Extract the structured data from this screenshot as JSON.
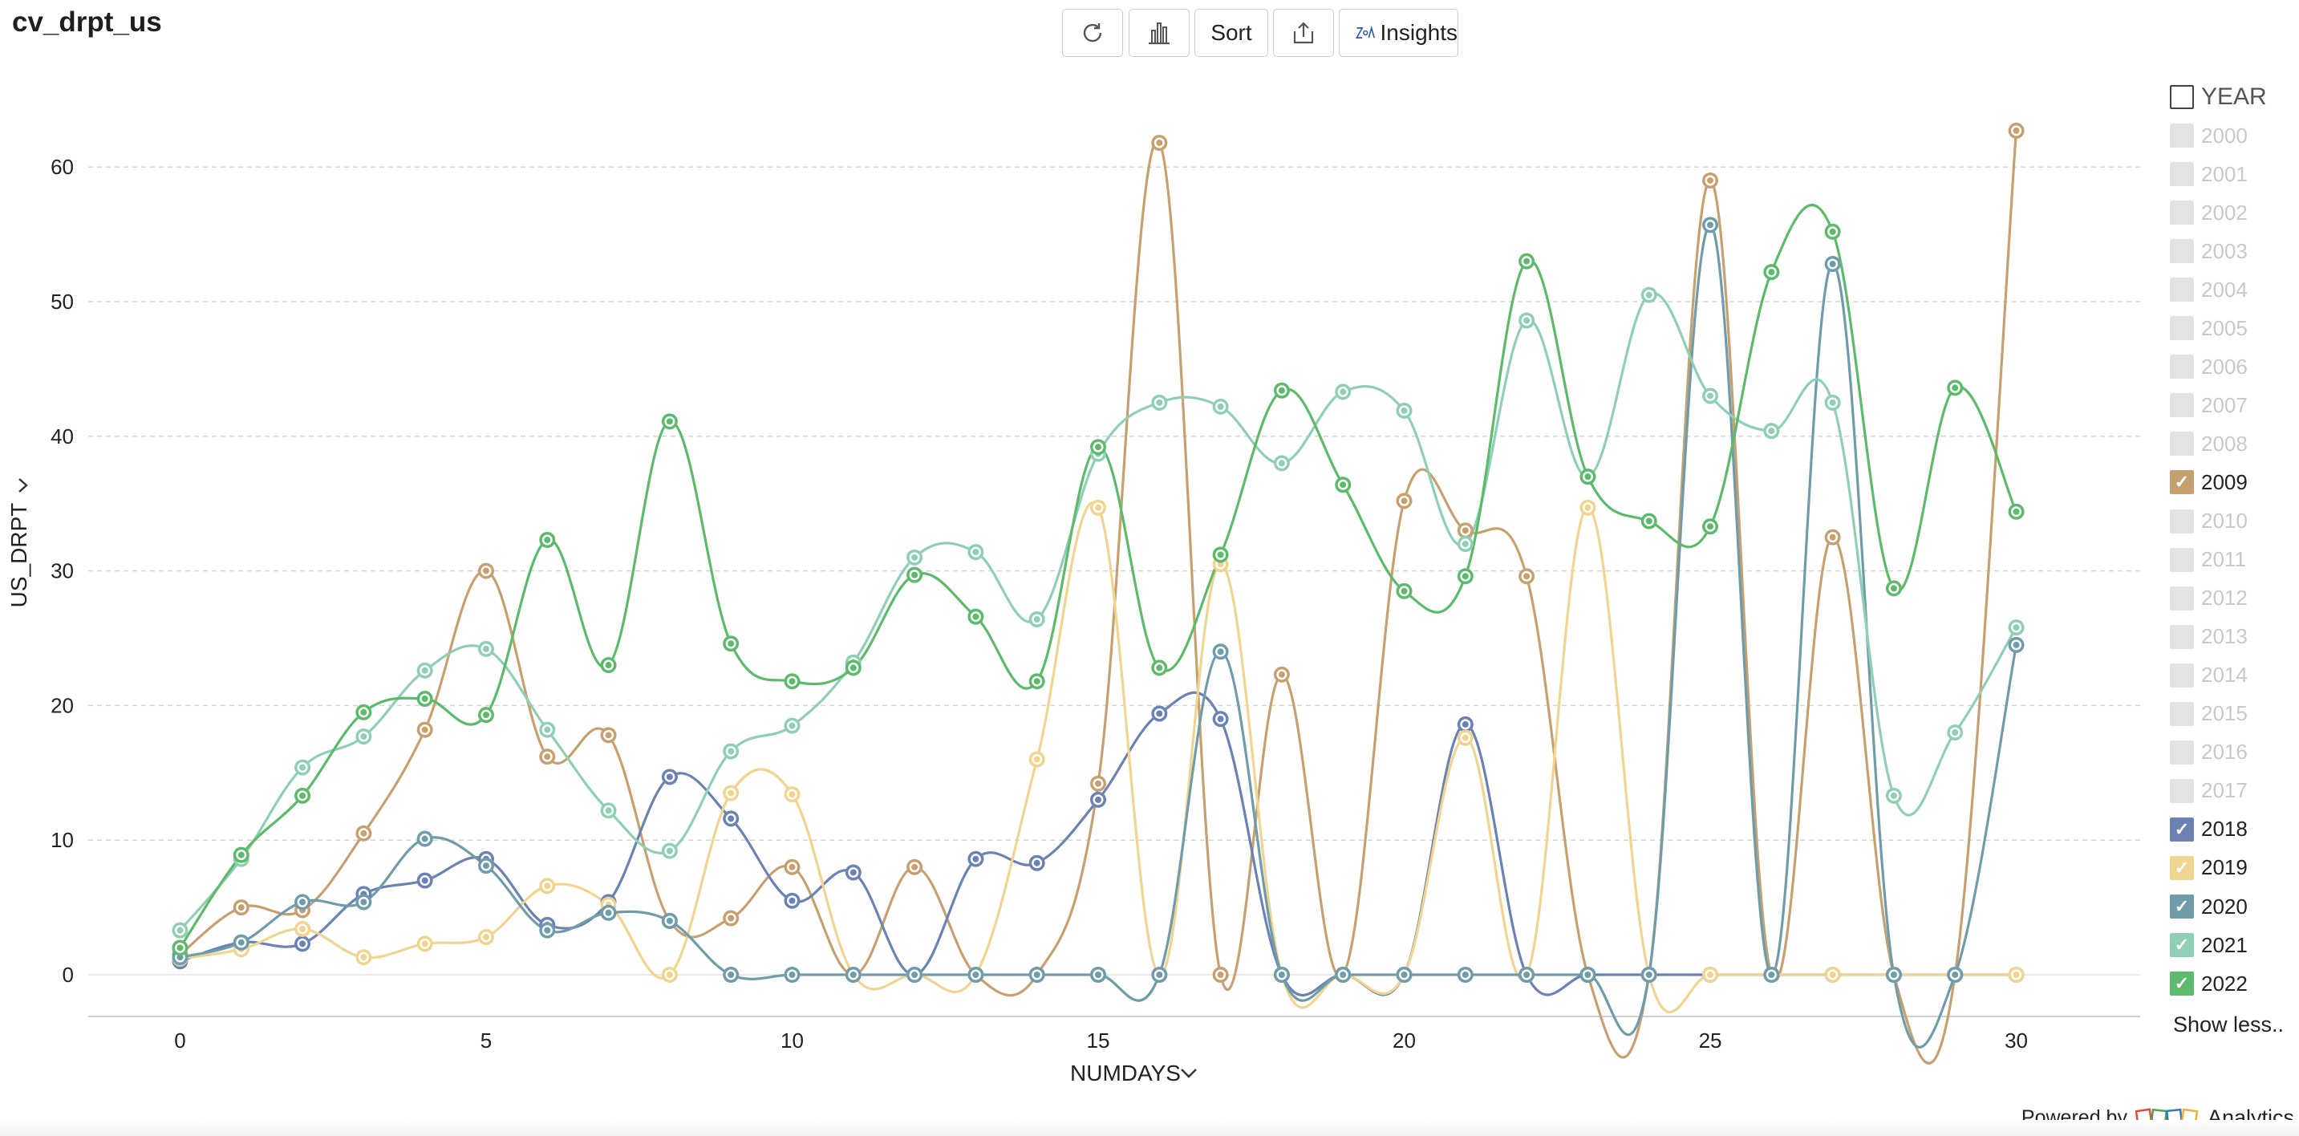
{
  "page": {
    "title": "cv_drpt_us"
  },
  "toolbar": {
    "refresh_icon": "refresh-icon",
    "chart_type_icon": "bar-chart-icon",
    "sort_label": "Sort",
    "export_icon": "export-icon",
    "insights_label": "Insights",
    "insights_icon": "insights-icon"
  },
  "legend": {
    "header": "YEAR",
    "show_less_label": "Show less..",
    "items": [
      {
        "label": "2000",
        "active": false
      },
      {
        "label": "2001",
        "active": false
      },
      {
        "label": "2002",
        "active": false
      },
      {
        "label": "2003",
        "active": false
      },
      {
        "label": "2004",
        "active": false
      },
      {
        "label": "2005",
        "active": false
      },
      {
        "label": "2006",
        "active": false
      },
      {
        "label": "2007",
        "active": false
      },
      {
        "label": "2008",
        "active": false
      },
      {
        "label": "2009",
        "active": true,
        "color": "#c8a06f"
      },
      {
        "label": "2010",
        "active": false
      },
      {
        "label": "2011",
        "active": false
      },
      {
        "label": "2012",
        "active": false
      },
      {
        "label": "2013",
        "active": false
      },
      {
        "label": "2014",
        "active": false
      },
      {
        "label": "2015",
        "active": false
      },
      {
        "label": "2016",
        "active": false
      },
      {
        "label": "2017",
        "active": false
      },
      {
        "label": "2018",
        "active": true,
        "color": "#6b82b5"
      },
      {
        "label": "2019",
        "active": true,
        "color": "#f1d48e"
      },
      {
        "label": "2020",
        "active": true,
        "color": "#6f9cab"
      },
      {
        "label": "2021",
        "active": true,
        "color": "#8fd0b5"
      },
      {
        "label": "2022",
        "active": true,
        "color": "#5cbb6b"
      }
    ]
  },
  "footer": {
    "powered_by": "Powered by",
    "brand": "Analytics"
  },
  "chart_data": {
    "type": "line",
    "xlabel": "NUMDAYS",
    "ylabel": "US_DRPT",
    "xlim": [
      -1.5,
      31.5
    ],
    "ylim": [
      0,
      65
    ],
    "x_ticks": [
      0,
      5,
      10,
      15,
      20,
      25,
      30
    ],
    "y_ticks": [
      0,
      10,
      20,
      30,
      40,
      50,
      60
    ],
    "grid": "horizontal dashed",
    "legend_position": "right",
    "x": [
      0,
      1,
      2,
      3,
      4,
      5,
      6,
      7,
      8,
      9,
      10,
      11,
      12,
      13,
      14,
      15,
      16,
      17,
      18,
      19,
      20,
      21,
      22,
      23,
      24,
      25,
      26,
      27,
      28,
      29,
      30
    ],
    "series": [
      {
        "name": "2009",
        "color": "#c8a06f",
        "values": [
          1.5,
          5,
          4.8,
          10.5,
          18.2,
          30,
          16.2,
          17.8,
          4,
          4.2,
          8,
          0,
          8,
          0,
          0,
          14.2,
          61.8,
          0,
          22.3,
          0,
          35.2,
          33,
          29.6,
          0,
          0,
          59,
          0,
          32.5,
          0,
          0,
          62.7
        ]
      },
      {
        "name": "2018",
        "color": "#6b82b5",
        "values": [
          1,
          2.4,
          2.3,
          6,
          7,
          8.6,
          3.7,
          5.4,
          14.7,
          11.6,
          5.5,
          7.6,
          0,
          8.6,
          8.3,
          13,
          19.4,
          19,
          0,
          0,
          0,
          18.6,
          0,
          0,
          0,
          0,
          0,
          0,
          0,
          0,
          0
        ]
      },
      {
        "name": "2019",
        "color": "#f1d48e",
        "values": [
          1.2,
          1.9,
          3.4,
          1.3,
          2.3,
          2.8,
          6.6,
          5.2,
          0,
          13.5,
          13.4,
          0,
          0,
          0,
          16,
          34.7,
          0,
          30.5,
          0,
          0,
          0,
          17.6,
          0,
          34.7,
          0,
          0,
          0,
          0,
          0,
          0,
          0
        ]
      },
      {
        "name": "2020",
        "color": "#6f9cab",
        "values": [
          1.3,
          2.4,
          5.4,
          5.4,
          10.1,
          8.1,
          3.3,
          4.6,
          4,
          0,
          0,
          0,
          0,
          0,
          0,
          0,
          0,
          24,
          0,
          0,
          0,
          0,
          0,
          0,
          0,
          55.7,
          0,
          52.8,
          0,
          0,
          24.5
        ]
      },
      {
        "name": "2021",
        "color": "#8fd0b5",
        "values": [
          3.3,
          8.6,
          15.4,
          17.7,
          22.6,
          24.2,
          18.2,
          12.2,
          9.2,
          16.6,
          18.5,
          23.2,
          31,
          31.4,
          26.4,
          38.7,
          42.5,
          42.2,
          38,
          43.3,
          41.9,
          32,
          48.6,
          37,
          50.5,
          43,
          40.4,
          42.5,
          13.3,
          18,
          25.8
        ]
      },
      {
        "name": "2022",
        "color": "#5cbb6b",
        "values": [
          2,
          8.9,
          13.3,
          19.5,
          20.5,
          19.3,
          32.3,
          23,
          41.1,
          24.6,
          21.8,
          22.8,
          29.7,
          26.6,
          21.8,
          39.2,
          22.8,
          31.2,
          43.4,
          36.4,
          28.5,
          29.6,
          53,
          37,
          33.7,
          33.3,
          52.2,
          55.2,
          28.7,
          43.6,
          34.4
        ]
      }
    ]
  }
}
